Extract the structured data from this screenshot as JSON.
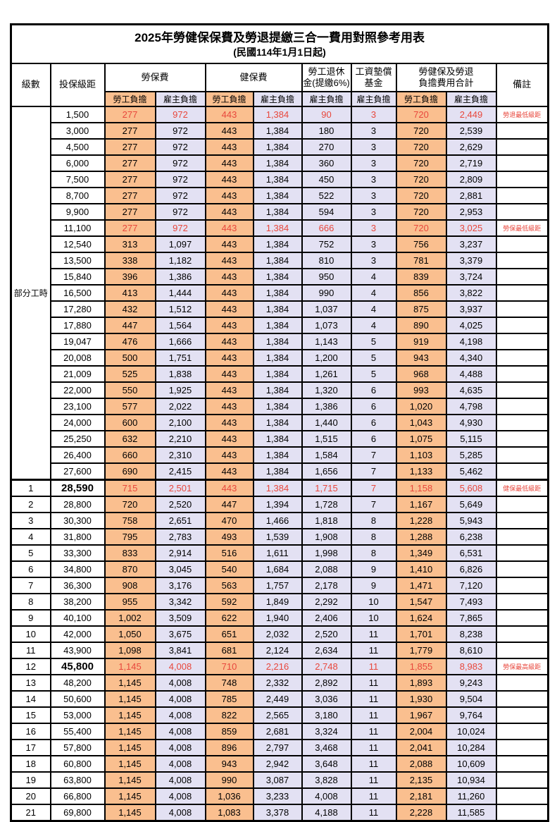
{
  "title": "2025年勞健保保費及勞退提繳三合一費用對照參考用表",
  "subtitle": "(民國114年1月1日起)",
  "colors": {
    "worker_column_bg": "#fabf8f",
    "employer_column_bg": "#e3e1f3",
    "highlight_red": "#e8473c",
    "border": "#000000"
  },
  "header": {
    "level": "級數",
    "bracket": "投保級距",
    "labor_insurance": "勞保費",
    "health_insurance": "健保費",
    "pension_line1": "勞工退休",
    "pension_line2": "金(提繳6%)",
    "wage_fund_line1": "工資墊償",
    "wage_fund_line2": "基金",
    "total_line1": "勞健保及勞退",
    "total_line2": "負擔費用合計",
    "note": "備註",
    "worker_burden": "勞工負擔",
    "employer_burden": "雇主負擔"
  },
  "part_time_label": "部分工時",
  "part_time_row_count": 23,
  "rows": [
    {
      "level": "",
      "bracket": "1,500",
      "values": [
        "277",
        "972",
        "443",
        "1,384",
        "90",
        "3",
        "720",
        "2,449"
      ],
      "note": "勞退最低級距",
      "red": true,
      "bold": false,
      "sep": false
    },
    {
      "level": "",
      "bracket": "3,000",
      "values": [
        "277",
        "972",
        "443",
        "1,384",
        "180",
        "3",
        "720",
        "2,539"
      ],
      "note": "",
      "red": false,
      "bold": false,
      "sep": false
    },
    {
      "level": "",
      "bracket": "4,500",
      "values": [
        "277",
        "972",
        "443",
        "1,384",
        "270",
        "3",
        "720",
        "2,629"
      ],
      "note": "",
      "red": false,
      "bold": false,
      "sep": false
    },
    {
      "level": "",
      "bracket": "6,000",
      "values": [
        "277",
        "972",
        "443",
        "1,384",
        "360",
        "3",
        "720",
        "2,719"
      ],
      "note": "",
      "red": false,
      "bold": false,
      "sep": false
    },
    {
      "level": "",
      "bracket": "7,500",
      "values": [
        "277",
        "972",
        "443",
        "1,384",
        "450",
        "3",
        "720",
        "2,809"
      ],
      "note": "",
      "red": false,
      "bold": false,
      "sep": false
    },
    {
      "level": "",
      "bracket": "8,700",
      "values": [
        "277",
        "972",
        "443",
        "1,384",
        "522",
        "3",
        "720",
        "2,881"
      ],
      "note": "",
      "red": false,
      "bold": false,
      "sep": false
    },
    {
      "level": "",
      "bracket": "9,900",
      "values": [
        "277",
        "972",
        "443",
        "1,384",
        "594",
        "3",
        "720",
        "2,953"
      ],
      "note": "",
      "red": false,
      "bold": false,
      "sep": false
    },
    {
      "level": "",
      "bracket": "11,100",
      "values": [
        "277",
        "972",
        "443",
        "1,384",
        "666",
        "3",
        "720",
        "3,025"
      ],
      "note": "勞保最低級距",
      "red": true,
      "bold": false,
      "sep": false
    },
    {
      "level": "",
      "bracket": "12,540",
      "values": [
        "313",
        "1,097",
        "443",
        "1,384",
        "752",
        "3",
        "756",
        "3,237"
      ],
      "note": "",
      "red": false,
      "bold": false,
      "sep": false
    },
    {
      "level": "",
      "bracket": "13,500",
      "values": [
        "338",
        "1,182",
        "443",
        "1,384",
        "810",
        "3",
        "781",
        "3,379"
      ],
      "note": "",
      "red": false,
      "bold": false,
      "sep": false
    },
    {
      "level": "",
      "bracket": "15,840",
      "values": [
        "396",
        "1,386",
        "443",
        "1,384",
        "950",
        "4",
        "839",
        "3,724"
      ],
      "note": "",
      "red": false,
      "bold": false,
      "sep": false
    },
    {
      "level": "",
      "bracket": "16,500",
      "values": [
        "413",
        "1,444",
        "443",
        "1,384",
        "990",
        "4",
        "856",
        "3,822"
      ],
      "note": "",
      "red": false,
      "bold": false,
      "sep": false
    },
    {
      "level": "",
      "bracket": "17,280",
      "values": [
        "432",
        "1,512",
        "443",
        "1,384",
        "1,037",
        "4",
        "875",
        "3,937"
      ],
      "note": "",
      "red": false,
      "bold": false,
      "sep": false
    },
    {
      "level": "",
      "bracket": "17,880",
      "values": [
        "447",
        "1,564",
        "443",
        "1,384",
        "1,073",
        "4",
        "890",
        "4,025"
      ],
      "note": "",
      "red": false,
      "bold": false,
      "sep": false
    },
    {
      "level": "",
      "bracket": "19,047",
      "values": [
        "476",
        "1,666",
        "443",
        "1,384",
        "1,143",
        "5",
        "919",
        "4,198"
      ],
      "note": "",
      "red": false,
      "bold": false,
      "sep": false
    },
    {
      "level": "",
      "bracket": "20,008",
      "values": [
        "500",
        "1,751",
        "443",
        "1,384",
        "1,200",
        "5",
        "943",
        "4,340"
      ],
      "note": "",
      "red": false,
      "bold": false,
      "sep": false
    },
    {
      "level": "",
      "bracket": "21,009",
      "values": [
        "525",
        "1,838",
        "443",
        "1,384",
        "1,261",
        "5",
        "968",
        "4,488"
      ],
      "note": "",
      "red": false,
      "bold": false,
      "sep": false
    },
    {
      "level": "",
      "bracket": "22,000",
      "values": [
        "550",
        "1,925",
        "443",
        "1,384",
        "1,320",
        "6",
        "993",
        "4,635"
      ],
      "note": "",
      "red": false,
      "bold": false,
      "sep": false
    },
    {
      "level": "",
      "bracket": "23,100",
      "values": [
        "577",
        "2,022",
        "443",
        "1,384",
        "1,386",
        "6",
        "1,020",
        "4,798"
      ],
      "note": "",
      "red": false,
      "bold": false,
      "sep": false
    },
    {
      "level": "",
      "bracket": "24,000",
      "values": [
        "600",
        "2,100",
        "443",
        "1,384",
        "1,440",
        "6",
        "1,043",
        "4,930"
      ],
      "note": "",
      "red": false,
      "bold": false,
      "sep": false
    },
    {
      "level": "",
      "bracket": "25,250",
      "values": [
        "632",
        "2,210",
        "443",
        "1,384",
        "1,515",
        "6",
        "1,075",
        "5,115"
      ],
      "note": "",
      "red": false,
      "bold": false,
      "sep": false
    },
    {
      "level": "",
      "bracket": "26,400",
      "values": [
        "660",
        "2,310",
        "443",
        "1,384",
        "1,584",
        "7",
        "1,103",
        "5,285"
      ],
      "note": "",
      "red": false,
      "bold": false,
      "sep": false
    },
    {
      "level": "",
      "bracket": "27,600",
      "values": [
        "690",
        "2,415",
        "443",
        "1,384",
        "1,656",
        "7",
        "1,133",
        "5,462"
      ],
      "note": "",
      "red": false,
      "bold": false,
      "sep": false
    },
    {
      "level": "1",
      "bracket": "28,590",
      "values": [
        "715",
        "2,501",
        "443",
        "1,384",
        "1,715",
        "7",
        "1,158",
        "5,608"
      ],
      "note": "健保最低級距",
      "red": true,
      "bold": true,
      "sep": true
    },
    {
      "level": "2",
      "bracket": "28,800",
      "values": [
        "720",
        "2,520",
        "447",
        "1,394",
        "1,728",
        "7",
        "1,167",
        "5,649"
      ],
      "note": "",
      "red": false,
      "bold": false,
      "sep": false
    },
    {
      "level": "3",
      "bracket": "30,300",
      "values": [
        "758",
        "2,651",
        "470",
        "1,466",
        "1,818",
        "8",
        "1,228",
        "5,943"
      ],
      "note": "",
      "red": false,
      "bold": false,
      "sep": false
    },
    {
      "level": "4",
      "bracket": "31,800",
      "values": [
        "795",
        "2,783",
        "493",
        "1,539",
        "1,908",
        "8",
        "1,288",
        "6,238"
      ],
      "note": "",
      "red": false,
      "bold": false,
      "sep": false
    },
    {
      "level": "5",
      "bracket": "33,300",
      "values": [
        "833",
        "2,914",
        "516",
        "1,611",
        "1,998",
        "8",
        "1,349",
        "6,531"
      ],
      "note": "",
      "red": false,
      "bold": false,
      "sep": false
    },
    {
      "level": "6",
      "bracket": "34,800",
      "values": [
        "870",
        "3,045",
        "540",
        "1,684",
        "2,088",
        "9",
        "1,410",
        "6,826"
      ],
      "note": "",
      "red": false,
      "bold": false,
      "sep": false
    },
    {
      "level": "7",
      "bracket": "36,300",
      "values": [
        "908",
        "3,176",
        "563",
        "1,757",
        "2,178",
        "9",
        "1,471",
        "7,120"
      ],
      "note": "",
      "red": false,
      "bold": false,
      "sep": false
    },
    {
      "level": "8",
      "bracket": "38,200",
      "values": [
        "955",
        "3,342",
        "592",
        "1,849",
        "2,292",
        "10",
        "1,547",
        "7,493"
      ],
      "note": "",
      "red": false,
      "bold": false,
      "sep": false
    },
    {
      "level": "9",
      "bracket": "40,100",
      "values": [
        "1,002",
        "3,509",
        "622",
        "1,940",
        "2,406",
        "10",
        "1,624",
        "7,865"
      ],
      "note": "",
      "red": false,
      "bold": false,
      "sep": false
    },
    {
      "level": "10",
      "bracket": "42,000",
      "values": [
        "1,050",
        "3,675",
        "651",
        "2,032",
        "2,520",
        "11",
        "1,701",
        "8,238"
      ],
      "note": "",
      "red": false,
      "bold": false,
      "sep": false
    },
    {
      "level": "11",
      "bracket": "43,900",
      "values": [
        "1,098",
        "3,841",
        "681",
        "2,124",
        "2,634",
        "11",
        "1,779",
        "8,610"
      ],
      "note": "",
      "red": false,
      "bold": false,
      "sep": false
    },
    {
      "level": "12",
      "bracket": "45,800",
      "values": [
        "1,145",
        "4,008",
        "710",
        "2,216",
        "2,748",
        "11",
        "1,855",
        "8,983"
      ],
      "note": "勞保最高級距",
      "red": true,
      "bold": true,
      "sep": false
    },
    {
      "level": "13",
      "bracket": "48,200",
      "values": [
        "1,145",
        "4,008",
        "748",
        "2,332",
        "2,892",
        "11",
        "1,893",
        "9,243"
      ],
      "note": "",
      "red": false,
      "bold": false,
      "sep": false
    },
    {
      "level": "14",
      "bracket": "50,600",
      "values": [
        "1,145",
        "4,008",
        "785",
        "2,449",
        "3,036",
        "11",
        "1,930",
        "9,504"
      ],
      "note": "",
      "red": false,
      "bold": false,
      "sep": false
    },
    {
      "level": "15",
      "bracket": "53,000",
      "values": [
        "1,145",
        "4,008",
        "822",
        "2,565",
        "3,180",
        "11",
        "1,967",
        "9,764"
      ],
      "note": "",
      "red": false,
      "bold": false,
      "sep": false
    },
    {
      "level": "16",
      "bracket": "55,400",
      "values": [
        "1,145",
        "4,008",
        "859",
        "2,681",
        "3,324",
        "11",
        "2,004",
        "10,024"
      ],
      "note": "",
      "red": false,
      "bold": false,
      "sep": false
    },
    {
      "level": "17",
      "bracket": "57,800",
      "values": [
        "1,145",
        "4,008",
        "896",
        "2,797",
        "3,468",
        "11",
        "2,041",
        "10,284"
      ],
      "note": "",
      "red": false,
      "bold": false,
      "sep": false
    },
    {
      "level": "18",
      "bracket": "60,800",
      "values": [
        "1,145",
        "4,008",
        "943",
        "2,942",
        "3,648",
        "11",
        "2,088",
        "10,609"
      ],
      "note": "",
      "red": false,
      "bold": false,
      "sep": false
    },
    {
      "level": "19",
      "bracket": "63,800",
      "values": [
        "1,145",
        "4,008",
        "990",
        "3,087",
        "3,828",
        "11",
        "2,135",
        "10,934"
      ],
      "note": "",
      "red": false,
      "bold": false,
      "sep": false
    },
    {
      "level": "20",
      "bracket": "66,800",
      "values": [
        "1,145",
        "4,008",
        "1,036",
        "3,233",
        "4,008",
        "11",
        "2,181",
        "11,260"
      ],
      "note": "",
      "red": false,
      "bold": false,
      "sep": false
    },
    {
      "level": "21",
      "bracket": "69,800",
      "values": [
        "1,145",
        "4,008",
        "1,083",
        "3,378",
        "4,188",
        "11",
        "2,228",
        "11,585"
      ],
      "note": "",
      "red": false,
      "bold": false,
      "sep": false
    }
  ]
}
